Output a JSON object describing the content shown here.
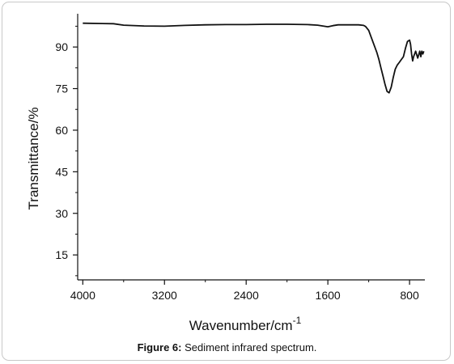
{
  "chart_data": {
    "type": "line",
    "xlabel": "Wavenumber/cm",
    "xlabel_sup": "-1",
    "ylabel": "Transmittance/%",
    "xlim": [
      4050,
      650
    ],
    "ylim": [
      6,
      102
    ],
    "x_ticks": [
      4000,
      3200,
      2400,
      1600,
      800
    ],
    "x_tick_labels": [
      "4000",
      "3200",
      "2400",
      "1600",
      "800"
    ],
    "y_ticks": [
      15,
      30,
      45,
      60,
      75,
      90
    ],
    "y_tick_labels": [
      "15",
      "30",
      "45",
      "60",
      "75",
      "90"
    ],
    "grid": false,
    "series": [
      {
        "color": "#111111",
        "x": [
          4000,
          3700,
          3600,
          3550,
          3400,
          3200,
          3000,
          2800,
          2600,
          2400,
          2200,
          2000,
          1800,
          1700,
          1650,
          1600,
          1550,
          1500,
          1400,
          1300,
          1250,
          1230,
          1200,
          1180,
          1150,
          1120,
          1100,
          1080,
          1060,
          1040,
          1020,
          1000,
          980,
          960,
          940,
          920,
          900,
          880,
          860,
          840,
          820,
          800,
          790,
          780,
          770,
          760,
          740,
          720,
          700,
          690,
          680,
          670,
          660
        ],
        "y": [
          98.6,
          98.4,
          97.9,
          97.8,
          97.6,
          97.5,
          97.8,
          98.0,
          98.1,
          98.1,
          98.2,
          98.2,
          98.1,
          97.9,
          97.6,
          97.3,
          97.7,
          98.0,
          98.0,
          98.0,
          97.8,
          97.4,
          96.0,
          94.0,
          91.0,
          88.0,
          85.5,
          82.5,
          79.5,
          76.5,
          74.0,
          73.5,
          75.5,
          79.0,
          82.0,
          83.5,
          84.5,
          85.5,
          86.5,
          89.5,
          92.0,
          92.5,
          91.0,
          87.5,
          85.0,
          86.5,
          88.5,
          86.0,
          88.5,
          86.5,
          88.5,
          87.5,
          88.5
        ]
      }
    ]
  },
  "caption": {
    "label": "Figure 6:",
    "text": " Sediment infrared spectrum."
  }
}
